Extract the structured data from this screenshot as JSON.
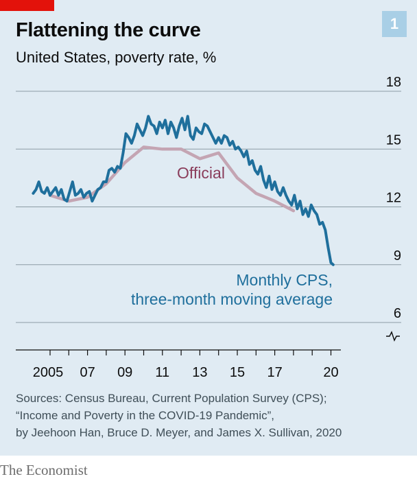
{
  "header": {
    "title": "Flattening the curve",
    "subtitle": "United States, poverty rate, %",
    "chart_number": "1"
  },
  "footer": {
    "sources": [
      "Sources: Census Bureau, Current Population Survey (CPS);",
      "“Income and Poverty in the COVID-19 Pandemic”,",
      "by Jeehoon Han, Bruce D. Meyer, and James X. Sullivan, 2020"
    ],
    "brand": "The Economist"
  },
  "colors": {
    "background": "#e0ebf3",
    "monthly_cps": "#1f6f9c",
    "official": "#c4a5b3",
    "official_label": "#8a3d5b",
    "grid": "#8c9ba4",
    "accent_red": "#e3120b"
  },
  "chart_data": {
    "type": "line",
    "title": "Flattening the curve",
    "subtitle": "United States, poverty rate, %",
    "ylim": [
      6,
      18
    ],
    "y_axis_break": true,
    "x_range": [
      2004,
      2020.5
    ],
    "y_ticks": [
      6,
      9,
      12,
      15,
      18
    ],
    "x_ticks": [
      {
        "value": 2005,
        "label": "2005"
      },
      {
        "value": 2007,
        "label": "07"
      },
      {
        "value": 2009,
        "label": "09"
      },
      {
        "value": 2011,
        "label": "11"
      },
      {
        "value": 2013,
        "label": "13"
      },
      {
        "value": 2015,
        "label": "15"
      },
      {
        "value": 2017,
        "label": "17"
      },
      {
        "value": 2020,
        "label": "20"
      }
    ],
    "grid": true,
    "y_axis_position": "right",
    "series": [
      {
        "name": "Official",
        "label": "Official",
        "color": "#c4a5b3",
        "x": [
          2005,
          2006,
          2007,
          2008,
          2009,
          2010,
          2011,
          2012,
          2013,
          2014,
          2015,
          2016,
          2017,
          2018
        ],
        "y": [
          12.6,
          12.3,
          12.5,
          13.2,
          14.3,
          15.1,
          15.0,
          15.0,
          14.5,
          14.8,
          13.5,
          12.7,
          12.3,
          11.8
        ]
      },
      {
        "name": "Monthly CPS, three-month moving average",
        "label_lines": [
          "Monthly CPS,",
          "three-month moving average"
        ],
        "color": "#1f6f9c",
        "x": [
          2004.1,
          2004.25,
          2004.4,
          2004.55,
          2004.7,
          2004.85,
          2005.0,
          2005.15,
          2005.3,
          2005.45,
          2005.6,
          2005.75,
          2005.9,
          2006.05,
          2006.2,
          2006.35,
          2006.5,
          2006.65,
          2006.8,
          2006.95,
          2007.1,
          2007.25,
          2007.4,
          2007.55,
          2007.7,
          2007.85,
          2008.0,
          2008.15,
          2008.3,
          2008.45,
          2008.6,
          2008.75,
          2008.9,
          2009.05,
          2009.2,
          2009.35,
          2009.5,
          2009.65,
          2009.8,
          2009.95,
          2010.1,
          2010.25,
          2010.4,
          2010.55,
          2010.7,
          2010.85,
          2011.0,
          2011.15,
          2011.3,
          2011.45,
          2011.6,
          2011.75,
          2011.9,
          2012.05,
          2012.2,
          2012.35,
          2012.5,
          2012.65,
          2012.8,
          2012.95,
          2013.1,
          2013.25,
          2013.4,
          2013.55,
          2013.7,
          2013.85,
          2014.0,
          2014.15,
          2014.3,
          2014.45,
          2014.6,
          2014.75,
          2014.9,
          2015.05,
          2015.2,
          2015.35,
          2015.5,
          2015.65,
          2015.8,
          2015.95,
          2016.1,
          2016.25,
          2016.4,
          2016.55,
          2016.7,
          2016.85,
          2017.0,
          2017.15,
          2017.3,
          2017.45,
          2017.6,
          2017.75,
          2017.9,
          2018.05,
          2018.2,
          2018.35,
          2018.5,
          2018.65,
          2018.8,
          2018.95,
          2019.1,
          2019.25,
          2019.4,
          2019.55,
          2019.7,
          2019.85,
          2020.0,
          2020.12
        ],
        "y": [
          12.7,
          12.9,
          13.3,
          12.8,
          12.7,
          13.0,
          12.6,
          12.8,
          13.0,
          12.6,
          12.9,
          12.4,
          12.3,
          12.8,
          13.3,
          12.6,
          12.7,
          12.9,
          12.5,
          12.7,
          12.8,
          12.3,
          12.6,
          12.9,
          13.0,
          13.3,
          13.3,
          13.9,
          14.0,
          13.8,
          14.1,
          14.0,
          14.8,
          15.8,
          15.6,
          15.3,
          15.7,
          16.3,
          16.0,
          15.7,
          16.1,
          16.7,
          16.3,
          16.2,
          15.8,
          16.4,
          16.1,
          16.5,
          15.8,
          16.4,
          16.1,
          15.6,
          16.2,
          16.6,
          16.0,
          16.7,
          15.7,
          15.5,
          16.1,
          15.9,
          15.8,
          16.3,
          16.2,
          15.9,
          15.6,
          15.3,
          15.6,
          15.3,
          15.7,
          15.6,
          15.2,
          15.4,
          15.0,
          15.1,
          14.9,
          14.6,
          14.9,
          14.2,
          14.4,
          13.9,
          13.7,
          14.1,
          13.4,
          13.0,
          13.6,
          12.9,
          13.3,
          12.8,
          12.6,
          13.0,
          12.6,
          12.3,
          12.1,
          12.6,
          11.9,
          12.3,
          11.6,
          11.9,
          11.5,
          12.1,
          11.8,
          11.6,
          11.1,
          11.2,
          10.8,
          9.9,
          9.1,
          9.0
        ]
      }
    ]
  }
}
